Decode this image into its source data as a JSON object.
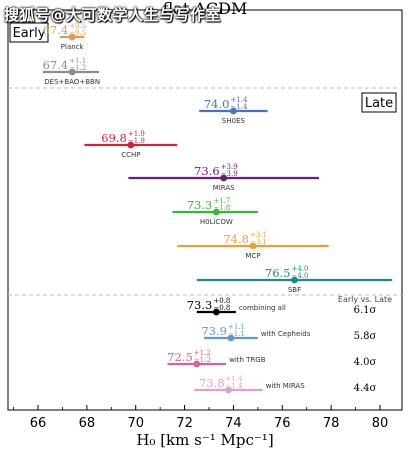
{
  "watermark": "搜狐号@大可数学人生与写作室",
  "chart_data": {
    "type": "scatter",
    "title": "flat ΛCDM",
    "xlabel": "H₀ [km s⁻¹ Mpc⁻¹]",
    "xlim": [
      64.3,
      81.3
    ],
    "xticks": [
      66,
      68,
      70,
      72,
      74,
      76,
      78,
      80
    ],
    "grid": false,
    "sections": [
      {
        "label": "Early"
      },
      {
        "label": "Late"
      }
    ],
    "summary_header": "Early vs. Late",
    "points": [
      {
        "name": "Planck",
        "section": "Early",
        "value": 67.4,
        "plus": 0.5,
        "minus": 0.5,
        "value_text": "67.4",
        "plus_text": "+0.5",
        "minus_text": "−0.5",
        "color": "#d4a05a",
        "note": "",
        "tension": ""
      },
      {
        "name": "DES+BAO+BBN",
        "section": "Early",
        "value": 67.4,
        "plus": 1.1,
        "minus": 1.2,
        "value_text": "67.4",
        "plus_text": "+1.1",
        "minus_text": "−1.2",
        "color": "#8c8c8c",
        "note": "",
        "tension": ""
      },
      {
        "name": "SH0ES",
        "section": "Late",
        "value": 74.0,
        "plus": 1.4,
        "minus": 1.4,
        "value_text": "74.0",
        "plus_text": "+1.4",
        "minus_text": "−1.4",
        "color": "#4a74b6",
        "note": "",
        "tension": ""
      },
      {
        "name": "CCHP",
        "section": "Late",
        "value": 69.8,
        "plus": 1.9,
        "minus": 1.9,
        "value_text": "69.8",
        "plus_text": "+1.9",
        "minus_text": "−1.9",
        "color": "#c8283c",
        "note": "",
        "tension": ""
      },
      {
        "name": "MIRAS",
        "section": "Late",
        "value": 73.6,
        "plus": 3.9,
        "minus": 3.9,
        "value_text": "73.6",
        "plus_text": "+3.9",
        "minus_text": "−3.9",
        "color": "#6a1e6e",
        "note": "",
        "tension": ""
      },
      {
        "name": "H0LiCOW",
        "section": "Late",
        "value": 73.3,
        "plus": 1.7,
        "minus": 1.8,
        "value_text": "73.3",
        "plus_text": "+1.7",
        "minus_text": "−1.8",
        "color": "#3cb43c",
        "note": "",
        "tension": ""
      },
      {
        "name": "MCP",
        "section": "Late",
        "value": 74.8,
        "plus": 3.1,
        "minus": 3.1,
        "value_text": "74.8",
        "plus_text": "+3.1",
        "minus_text": "−3.1",
        "color": "#e0a23c",
        "note": "",
        "tension": ""
      },
      {
        "name": "SBF",
        "section": "Late",
        "value": 76.5,
        "plus": 4.0,
        "minus": 4.0,
        "value_text": "76.5",
        "plus_text": "+4.0",
        "minus_text": "−4.0",
        "color": "#1e8a82",
        "note": "",
        "tension": ""
      },
      {
        "name": "",
        "section": "Combined",
        "value": 73.3,
        "plus": 0.8,
        "minus": 0.8,
        "value_text": "73.3",
        "plus_text": "+0.8",
        "minus_text": "−0.8",
        "color": "#000000",
        "note": "combining all",
        "tension": "6.1σ"
      },
      {
        "name": "",
        "section": "Combined",
        "value": 73.9,
        "plus": 1.1,
        "minus": 1.1,
        "value_text": "73.9",
        "plus_text": "+1.1",
        "minus_text": "−1.1",
        "color": "#6496c8",
        "note": "with Cepheids",
        "tension": "5.8σ"
      },
      {
        "name": "",
        "section": "Combined",
        "value": 72.5,
        "plus": 1.2,
        "minus": 1.2,
        "value_text": "72.5",
        "plus_text": "+1.2",
        "minus_text": "−1.2",
        "color": "#d2649c",
        "note": "with TRGB",
        "tension": "4.0σ"
      },
      {
        "name": "",
        "section": "Combined",
        "value": 73.8,
        "plus": 1.4,
        "minus": 1.4,
        "value_text": "73.8",
        "plus_text": "+1.4",
        "minus_text": "−1.4",
        "color": "#dca0d2",
        "note": "with MIRAS",
        "tension": "4.4σ"
      }
    ]
  }
}
